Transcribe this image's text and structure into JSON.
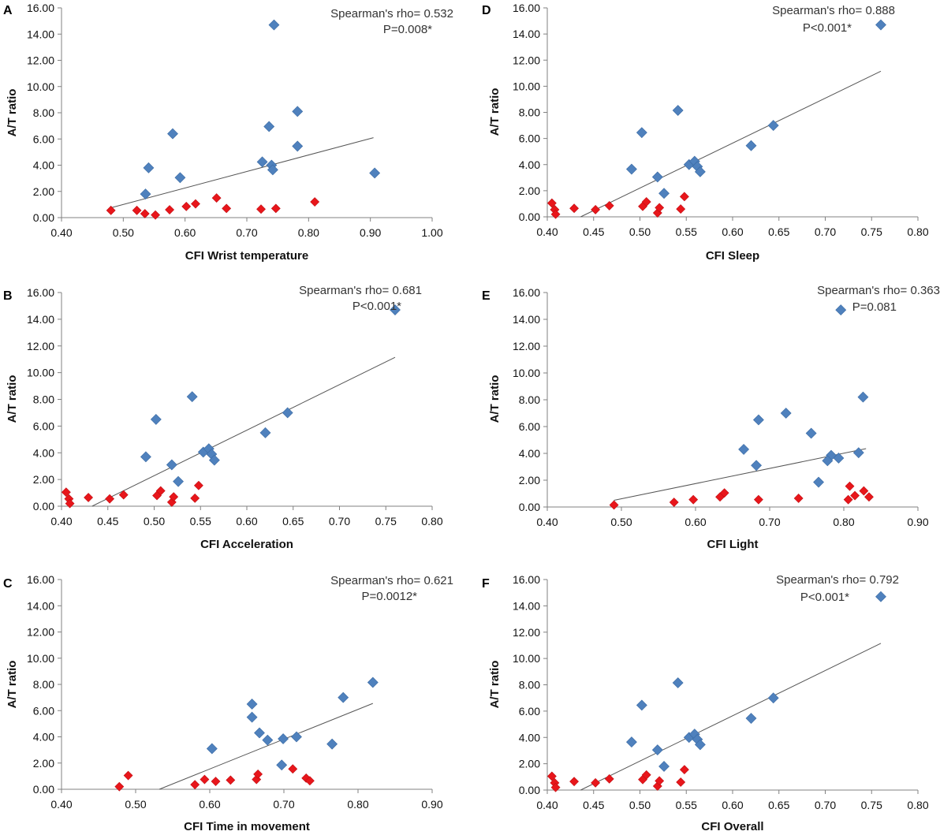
{
  "colors": {
    "blue": "#4F81BD",
    "red": "#E8161B",
    "axis": "#808080",
    "trend": "#555555"
  },
  "chart_data": [
    {
      "panel": "A",
      "type": "scatter",
      "xlabel": "CFI Wrist temperature",
      "ylabel": "A/T ratio",
      "xlim": [
        0.4,
        1.0
      ],
      "xticks": [
        0.4,
        0.5,
        0.6,
        0.7,
        0.8,
        0.9,
        1.0
      ],
      "ylim": [
        0,
        16
      ],
      "yticks": [
        0,
        2,
        4,
        6,
        8,
        10,
        12,
        14,
        16
      ],
      "xfmt": 2,
      "yfmt": 2,
      "annotation": [
        "Spearman's rho= 0.532",
        "P=0.008*"
      ],
      "trendline": [
        [
          0.48,
          0.75
        ],
        [
          0.905,
          6.1
        ]
      ],
      "series": [
        {
          "name": "blue",
          "points": [
            [
              0.744,
              14.7
            ],
            [
              0.782,
              8.1
            ],
            [
              0.58,
              6.4
            ],
            [
              0.736,
              6.95
            ],
            [
              0.782,
              5.45
            ],
            [
              0.725,
              4.25
            ],
            [
              0.74,
              4.0
            ],
            [
              0.541,
              3.8
            ],
            [
              0.742,
              3.65
            ],
            [
              0.907,
              3.4
            ],
            [
              0.592,
              3.05
            ],
            [
              0.536,
              1.8
            ]
          ]
        },
        {
          "name": "red",
          "points": [
            [
              0.48,
              0.55
            ],
            [
              0.522,
              0.55
            ],
            [
              0.535,
              0.3
            ],
            [
              0.552,
              0.2
            ],
            [
              0.575,
              0.6
            ],
            [
              0.602,
              0.85
            ],
            [
              0.617,
              1.05
            ],
            [
              0.651,
              1.5
            ],
            [
              0.667,
              0.7
            ],
            [
              0.723,
              0.65
            ],
            [
              0.747,
              0.7
            ],
            [
              0.81,
              1.2
            ]
          ]
        }
      ]
    },
    {
      "panel": "B",
      "type": "scatter",
      "xlabel": "CFI Acceleration",
      "ylabel": "A/T ratio",
      "xlim": [
        0.4,
        0.8
      ],
      "xticks": [
        0.4,
        0.45,
        0.5,
        0.55,
        0.6,
        0.65,
        0.7,
        0.75,
        0.8
      ],
      "ylim": [
        0,
        16
      ],
      "yticks": [
        0,
        2,
        4,
        6,
        8,
        10,
        12,
        14,
        16
      ],
      "xfmt": 2,
      "yfmt": 2,
      "annotation": [
        "Spearman's rho= 0.681",
        "P<0.001*"
      ],
      "trendline": [
        [
          0.433,
          0.0
        ],
        [
          0.76,
          11.15
        ]
      ],
      "series": [
        {
          "name": "blue",
          "points": [
            [
              0.76,
              14.7
            ],
            [
              0.541,
              8.2
            ],
            [
              0.502,
              6.5
            ],
            [
              0.644,
              7.0
            ],
            [
              0.62,
              5.5
            ],
            [
              0.491,
              3.7
            ],
            [
              0.519,
              3.1
            ],
            [
              0.526,
              1.85
            ],
            [
              0.553,
              4.05
            ],
            [
              0.559,
              4.3
            ],
            [
              0.562,
              3.9
            ],
            [
              0.565,
              3.45
            ]
          ]
        },
        {
          "name": "red",
          "points": [
            [
              0.405,
              1.05
            ],
            [
              0.408,
              0.55
            ],
            [
              0.409,
              0.2
            ],
            [
              0.429,
              0.65
            ],
            [
              0.452,
              0.55
            ],
            [
              0.467,
              0.85
            ],
            [
              0.503,
              0.8
            ],
            [
              0.507,
              1.15
            ],
            [
              0.519,
              0.3
            ],
            [
              0.521,
              0.7
            ],
            [
              0.544,
              0.6
            ],
            [
              0.548,
              1.55
            ]
          ]
        }
      ]
    },
    {
      "panel": "C",
      "type": "scatter",
      "xlabel": "CFI Time in movement",
      "ylabel": "A/T ratio",
      "xlim": [
        0.4,
        0.9
      ],
      "xticks": [
        0.4,
        0.5,
        0.6,
        0.7,
        0.8,
        0.9
      ],
      "ylim": [
        0,
        16
      ],
      "yticks": [
        0,
        2,
        4,
        6,
        8,
        10,
        12,
        14,
        16
      ],
      "xfmt": 2,
      "yfmt": 2,
      "annotation": [
        "Spearman's rho= 0.621",
        "P=0.0012*"
      ],
      "trendline": [
        [
          0.532,
          0.0
        ],
        [
          0.82,
          6.55
        ]
      ],
      "series": [
        {
          "name": "blue",
          "points": [
            [
              0.82,
              8.15
            ],
            [
              0.78,
              7.0
            ],
            [
              0.657,
              6.5
            ],
            [
              0.657,
              5.5
            ],
            [
              0.667,
              4.3
            ],
            [
              0.678,
              3.75
            ],
            [
              0.699,
              3.85
            ],
            [
              0.717,
              4.0
            ],
            [
              0.603,
              3.1
            ],
            [
              0.765,
              3.45
            ],
            [
              0.697,
              1.85
            ]
          ]
        },
        {
          "name": "red",
          "points": [
            [
              0.478,
              0.2
            ],
            [
              0.49,
              1.05
            ],
            [
              0.58,
              0.35
            ],
            [
              0.593,
              0.75
            ],
            [
              0.608,
              0.6
            ],
            [
              0.628,
              0.7
            ],
            [
              0.663,
              0.75
            ],
            [
              0.665,
              1.15
            ],
            [
              0.712,
              1.55
            ],
            [
              0.73,
              0.85
            ],
            [
              0.735,
              0.65
            ]
          ]
        }
      ]
    },
    {
      "panel": "D",
      "type": "scatter",
      "xlabel": "CFI Sleep",
      "ylabel": "A/T ratio",
      "xlim": [
        0.4,
        0.8
      ],
      "xticks": [
        0.4,
        0.45,
        0.5,
        0.55,
        0.6,
        0.65,
        0.7,
        0.75,
        0.8
      ],
      "ylim": [
        0,
        16
      ],
      "yticks": [
        0,
        2,
        4,
        6,
        8,
        10,
        12,
        14,
        16
      ],
      "xfmt": 2,
      "yfmt": 2,
      "annotation": [
        "Spearman's rho= 0.888",
        "P<0.001*"
      ],
      "trendline": [
        [
          0.436,
          0.0
        ],
        [
          0.76,
          11.15
        ]
      ],
      "series": [
        {
          "name": "blue",
          "points": [
            [
              0.76,
              14.7
            ],
            [
              0.541,
              8.15
            ],
            [
              0.502,
              6.45
            ],
            [
              0.644,
              7.0
            ],
            [
              0.62,
              5.45
            ],
            [
              0.491,
              3.65
            ],
            [
              0.519,
              3.05
            ],
            [
              0.526,
              1.8
            ],
            [
              0.553,
              4.0
            ],
            [
              0.559,
              4.25
            ],
            [
              0.562,
              3.85
            ],
            [
              0.565,
              3.45
            ]
          ]
        },
        {
          "name": "red",
          "points": [
            [
              0.405,
              1.05
            ],
            [
              0.408,
              0.55
            ],
            [
              0.409,
              0.2
            ],
            [
              0.429,
              0.65
            ],
            [
              0.452,
              0.55
            ],
            [
              0.467,
              0.85
            ],
            [
              0.503,
              0.8
            ],
            [
              0.507,
              1.15
            ],
            [
              0.519,
              0.3
            ],
            [
              0.521,
              0.7
            ],
            [
              0.544,
              0.6
            ],
            [
              0.548,
              1.55
            ]
          ]
        }
      ]
    },
    {
      "panel": "E",
      "type": "scatter",
      "xlabel": "CFI Light",
      "ylabel": "A/T ratio",
      "xlim": [
        0.4,
        0.9
      ],
      "xticks": [
        0.4,
        0.5,
        0.6,
        0.7,
        0.8,
        0.9
      ],
      "ylim": [
        0,
        16
      ],
      "yticks": [
        0,
        2,
        4,
        6,
        8,
        10,
        12,
        14,
        16
      ],
      "xfmt": 2,
      "yfmt": 2,
      "annotation": [
        "Spearman's rho= 0.363",
        "P=0.081"
      ],
      "trendline": [
        [
          0.49,
          0.5
        ],
        [
          0.83,
          4.35
        ]
      ],
      "series": [
        {
          "name": "blue",
          "points": [
            [
              0.796,
              14.7
            ],
            [
              0.826,
              8.2
            ],
            [
              0.722,
              7.0
            ],
            [
              0.685,
              6.5
            ],
            [
              0.756,
              5.5
            ],
            [
              0.665,
              4.3
            ],
            [
              0.682,
              3.1
            ],
            [
              0.783,
              3.85
            ],
            [
              0.778,
              3.45
            ],
            [
              0.793,
              3.65
            ],
            [
              0.82,
              4.05
            ],
            [
              0.766,
              1.85
            ]
          ]
        },
        {
          "name": "red",
          "points": [
            [
              0.49,
              0.15
            ],
            [
              0.571,
              0.35
            ],
            [
              0.597,
              0.55
            ],
            [
              0.633,
              0.75
            ],
            [
              0.639,
              1.05
            ],
            [
              0.685,
              0.55
            ],
            [
              0.739,
              0.65
            ],
            [
              0.806,
              0.55
            ],
            [
              0.808,
              1.55
            ],
            [
              0.815,
              0.85
            ],
            [
              0.827,
              1.2
            ],
            [
              0.834,
              0.75
            ]
          ]
        }
      ]
    },
    {
      "panel": "F",
      "type": "scatter",
      "xlabel": "CFI Overall",
      "ylabel": "A/T ratio",
      "xlim": [
        0.4,
        0.8
      ],
      "xticks": [
        0.4,
        0.45,
        0.5,
        0.55,
        0.6,
        0.65,
        0.7,
        0.75,
        0.8
      ],
      "ylim": [
        0,
        16
      ],
      "yticks": [
        0,
        2,
        4,
        6,
        8,
        10,
        12,
        14,
        16
      ],
      "xfmt": 2,
      "yfmt": 2,
      "annotation": [
        "Spearman's rho= 0.792",
        "P<0.001*"
      ],
      "trendline": [
        [
          0.436,
          0.0
        ],
        [
          0.76,
          11.15
        ]
      ],
      "series": [
        {
          "name": "blue",
          "points": [
            [
              0.76,
              14.7
            ],
            [
              0.541,
              8.15
            ],
            [
              0.502,
              6.45
            ],
            [
              0.644,
              7.0
            ],
            [
              0.62,
              5.45
            ],
            [
              0.491,
              3.65
            ],
            [
              0.519,
              3.05
            ],
            [
              0.526,
              1.8
            ],
            [
              0.553,
              4.0
            ],
            [
              0.559,
              4.25
            ],
            [
              0.562,
              3.85
            ],
            [
              0.565,
              3.45
            ]
          ]
        },
        {
          "name": "red",
          "points": [
            [
              0.405,
              1.05
            ],
            [
              0.408,
              0.55
            ],
            [
              0.409,
              0.2
            ],
            [
              0.429,
              0.65
            ],
            [
              0.452,
              0.55
            ],
            [
              0.467,
              0.85
            ],
            [
              0.503,
              0.8
            ],
            [
              0.507,
              1.15
            ],
            [
              0.519,
              0.3
            ],
            [
              0.521,
              0.7
            ],
            [
              0.544,
              0.6
            ],
            [
              0.548,
              1.55
            ]
          ]
        }
      ]
    }
  ]
}
